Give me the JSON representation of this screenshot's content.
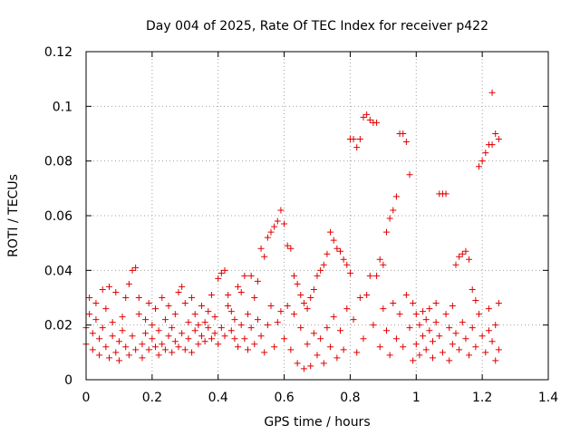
{
  "chart_data": {
    "type": "scatter",
    "title": "Day 004 of 2025, Rate Of TEC Index for receiver p422",
    "xlabel": "GPS time / hours",
    "ylabel": "ROTI / TECUs",
    "xlim": [
      0,
      1.4
    ],
    "ylim": [
      0,
      0.12
    ],
    "xticks": [
      "0",
      "0.2",
      "0.4",
      "0.6",
      "0.8",
      "1",
      "1.2",
      "1.4"
    ],
    "yticks": [
      "0",
      "0.02",
      "0.04",
      "0.06",
      "0.08",
      "0.1",
      "0.12"
    ],
    "grid": true,
    "marker": "+",
    "color": "#e00000",
    "series": [
      {
        "name": "ROTI",
        "points": [
          [
            0.0,
            0.019
          ],
          [
            0.0,
            0.013
          ],
          [
            0.01,
            0.03
          ],
          [
            0.01,
            0.024
          ],
          [
            0.02,
            0.017
          ],
          [
            0.02,
            0.011
          ],
          [
            0.03,
            0.022
          ],
          [
            0.03,
            0.028
          ],
          [
            0.04,
            0.015
          ],
          [
            0.04,
            0.009
          ],
          [
            0.05,
            0.033
          ],
          [
            0.05,
            0.019
          ],
          [
            0.06,
            0.012
          ],
          [
            0.06,
            0.026
          ],
          [
            0.07,
            0.034
          ],
          [
            0.07,
            0.008
          ],
          [
            0.08,
            0.016
          ],
          [
            0.08,
            0.021
          ],
          [
            0.09,
            0.032
          ],
          [
            0.09,
            0.01
          ],
          [
            0.1,
            0.014
          ],
          [
            0.1,
            0.007
          ],
          [
            0.11,
            0.023
          ],
          [
            0.11,
            0.018
          ],
          [
            0.12,
            0.012
          ],
          [
            0.12,
            0.03
          ],
          [
            0.13,
            0.035
          ],
          [
            0.13,
            0.009
          ],
          [
            0.14,
            0.04
          ],
          [
            0.14,
            0.016
          ],
          [
            0.15,
            0.041
          ],
          [
            0.15,
            0.011
          ],
          [
            0.16,
            0.024
          ],
          [
            0.16,
            0.03
          ],
          [
            0.17,
            0.013
          ],
          [
            0.17,
            0.008
          ],
          [
            0.18,
            0.022
          ],
          [
            0.18,
            0.017
          ],
          [
            0.19,
            0.011
          ],
          [
            0.19,
            0.028
          ],
          [
            0.2,
            0.015
          ],
          [
            0.2,
            0.02
          ],
          [
            0.21,
            0.012
          ],
          [
            0.21,
            0.026
          ],
          [
            0.22,
            0.018
          ],
          [
            0.22,
            0.009
          ],
          [
            0.23,
            0.03
          ],
          [
            0.23,
            0.013
          ],
          [
            0.24,
            0.022
          ],
          [
            0.24,
            0.011
          ],
          [
            0.25,
            0.016
          ],
          [
            0.25,
            0.027
          ],
          [
            0.26,
            0.019
          ],
          [
            0.26,
            0.01
          ],
          [
            0.27,
            0.024
          ],
          [
            0.27,
            0.014
          ],
          [
            0.28,
            0.032
          ],
          [
            0.28,
            0.012
          ],
          [
            0.29,
            0.034
          ],
          [
            0.29,
            0.017
          ],
          [
            0.3,
            0.028
          ],
          [
            0.3,
            0.011
          ],
          [
            0.31,
            0.021
          ],
          [
            0.31,
            0.015
          ],
          [
            0.32,
            0.03
          ],
          [
            0.32,
            0.01
          ],
          [
            0.33,
            0.018
          ],
          [
            0.33,
            0.024
          ],
          [
            0.34,
            0.013
          ],
          [
            0.34,
            0.02
          ],
          [
            0.35,
            0.016
          ],
          [
            0.35,
            0.027
          ],
          [
            0.36,
            0.014
          ],
          [
            0.36,
            0.021
          ],
          [
            0.37,
            0.019
          ],
          [
            0.37,
            0.025
          ],
          [
            0.38,
            0.015
          ],
          [
            0.38,
            0.031
          ],
          [
            0.39,
            0.017
          ],
          [
            0.39,
            0.023
          ],
          [
            0.4,
            0.037
          ],
          [
            0.4,
            0.013
          ],
          [
            0.41,
            0.039
          ],
          [
            0.41,
            0.019
          ],
          [
            0.42,
            0.04
          ],
          [
            0.42,
            0.016
          ],
          [
            0.43,
            0.027
          ],
          [
            0.43,
            0.031
          ],
          [
            0.44,
            0.018
          ],
          [
            0.44,
            0.025
          ],
          [
            0.45,
            0.015
          ],
          [
            0.45,
            0.022
          ],
          [
            0.46,
            0.034
          ],
          [
            0.46,
            0.012
          ],
          [
            0.47,
            0.02
          ],
          [
            0.47,
            0.032
          ],
          [
            0.48,
            0.038
          ],
          [
            0.48,
            0.015
          ],
          [
            0.49,
            0.024
          ],
          [
            0.49,
            0.011
          ],
          [
            0.5,
            0.038
          ],
          [
            0.5,
            0.019
          ],
          [
            0.51,
            0.03
          ],
          [
            0.51,
            0.013
          ],
          [
            0.52,
            0.036
          ],
          [
            0.52,
            0.022
          ],
          [
            0.53,
            0.048
          ],
          [
            0.53,
            0.016
          ],
          [
            0.54,
            0.045
          ],
          [
            0.54,
            0.01
          ],
          [
            0.55,
            0.052
          ],
          [
            0.55,
            0.02
          ],
          [
            0.56,
            0.054
          ],
          [
            0.56,
            0.027
          ],
          [
            0.57,
            0.056
          ],
          [
            0.57,
            0.012
          ],
          [
            0.58,
            0.058
          ],
          [
            0.58,
            0.021
          ],
          [
            0.59,
            0.062
          ],
          [
            0.59,
            0.025
          ],
          [
            0.6,
            0.057
          ],
          [
            0.6,
            0.015
          ],
          [
            0.61,
            0.049
          ],
          [
            0.61,
            0.027
          ],
          [
            0.62,
            0.048
          ],
          [
            0.62,
            0.011
          ],
          [
            0.63,
            0.038
          ],
          [
            0.63,
            0.024
          ],
          [
            0.64,
            0.035
          ],
          [
            0.64,
            0.006
          ],
          [
            0.65,
            0.031
          ],
          [
            0.65,
            0.019
          ],
          [
            0.66,
            0.028
          ],
          [
            0.66,
            0.004
          ],
          [
            0.67,
            0.026
          ],
          [
            0.67,
            0.013
          ],
          [
            0.68,
            0.03
          ],
          [
            0.68,
            0.005
          ],
          [
            0.69,
            0.033
          ],
          [
            0.69,
            0.017
          ],
          [
            0.7,
            0.038
          ],
          [
            0.7,
            0.009
          ],
          [
            0.71,
            0.04
          ],
          [
            0.71,
            0.015
          ],
          [
            0.72,
            0.042
          ],
          [
            0.72,
            0.006
          ],
          [
            0.73,
            0.046
          ],
          [
            0.73,
            0.019
          ],
          [
            0.74,
            0.054
          ],
          [
            0.74,
            0.012
          ],
          [
            0.75,
            0.051
          ],
          [
            0.75,
            0.023
          ],
          [
            0.76,
            0.048
          ],
          [
            0.76,
            0.008
          ],
          [
            0.77,
            0.047
          ],
          [
            0.77,
            0.018
          ],
          [
            0.78,
            0.044
          ],
          [
            0.78,
            0.011
          ],
          [
            0.79,
            0.042
          ],
          [
            0.79,
            0.026
          ],
          [
            0.8,
            0.088
          ],
          [
            0.8,
            0.039
          ],
          [
            0.81,
            0.088
          ],
          [
            0.81,
            0.022
          ],
          [
            0.82,
            0.085
          ],
          [
            0.82,
            0.01
          ],
          [
            0.83,
            0.088
          ],
          [
            0.83,
            0.03
          ],
          [
            0.84,
            0.096
          ],
          [
            0.84,
            0.015
          ],
          [
            0.85,
            0.097
          ],
          [
            0.85,
            0.031
          ],
          [
            0.86,
            0.095
          ],
          [
            0.86,
            0.038
          ],
          [
            0.87,
            0.094
          ],
          [
            0.87,
            0.02
          ],
          [
            0.88,
            0.094
          ],
          [
            0.88,
            0.038
          ],
          [
            0.89,
            0.044
          ],
          [
            0.89,
            0.012
          ],
          [
            0.9,
            0.042
          ],
          [
            0.9,
            0.026
          ],
          [
            0.91,
            0.054
          ],
          [
            0.91,
            0.018
          ],
          [
            0.92,
            0.059
          ],
          [
            0.92,
            0.009
          ],
          [
            0.93,
            0.062
          ],
          [
            0.93,
            0.028
          ],
          [
            0.94,
            0.067
          ],
          [
            0.94,
            0.015
          ],
          [
            0.95,
            0.09
          ],
          [
            0.95,
            0.024
          ],
          [
            0.96,
            0.09
          ],
          [
            0.96,
            0.012
          ],
          [
            0.97,
            0.087
          ],
          [
            0.97,
            0.031
          ],
          [
            0.98,
            0.075
          ],
          [
            0.98,
            0.019
          ],
          [
            0.99,
            0.028
          ],
          [
            0.99,
            0.007
          ],
          [
            1.0,
            0.024
          ],
          [
            1.0,
            0.013
          ],
          [
            1.01,
            0.02
          ],
          [
            1.01,
            0.009
          ],
          [
            1.02,
            0.025
          ],
          [
            1.02,
            0.016
          ],
          [
            1.03,
            0.022
          ],
          [
            1.03,
            0.011
          ],
          [
            1.04,
            0.018
          ],
          [
            1.04,
            0.026
          ],
          [
            1.05,
            0.014
          ],
          [
            1.05,
            0.008
          ],
          [
            1.06,
            0.021
          ],
          [
            1.06,
            0.028
          ],
          [
            1.07,
            0.016
          ],
          [
            1.07,
            0.068
          ],
          [
            1.08,
            0.01
          ],
          [
            1.08,
            0.068
          ],
          [
            1.09,
            0.068
          ],
          [
            1.09,
            0.024
          ],
          [
            1.1,
            0.019
          ],
          [
            1.1,
            0.007
          ],
          [
            1.11,
            0.013
          ],
          [
            1.11,
            0.027
          ],
          [
            1.12,
            0.017
          ],
          [
            1.12,
            0.042
          ],
          [
            1.13,
            0.045
          ],
          [
            1.13,
            0.011
          ],
          [
            1.14,
            0.046
          ],
          [
            1.14,
            0.021
          ],
          [
            1.15,
            0.047
          ],
          [
            1.15,
            0.015
          ],
          [
            1.16,
            0.044
          ],
          [
            1.16,
            0.009
          ],
          [
            1.17,
            0.033
          ],
          [
            1.17,
            0.019
          ],
          [
            1.18,
            0.029
          ],
          [
            1.18,
            0.012
          ],
          [
            1.19,
            0.078
          ],
          [
            1.19,
            0.024
          ],
          [
            1.2,
            0.08
          ],
          [
            1.2,
            0.016
          ],
          [
            1.21,
            0.083
          ],
          [
            1.21,
            0.01
          ],
          [
            1.22,
            0.086
          ],
          [
            1.22,
            0.026
          ],
          [
            1.23,
            0.086
          ],
          [
            1.23,
            0.014
          ],
          [
            1.23,
            0.105
          ],
          [
            1.24,
            0.09
          ],
          [
            1.24,
            0.02
          ],
          [
            1.25,
            0.088
          ],
          [
            1.25,
            0.028
          ],
          [
            1.25,
            0.011
          ],
          [
            1.24,
            0.007
          ],
          [
            1.22,
            0.018
          ]
        ]
      }
    ]
  }
}
